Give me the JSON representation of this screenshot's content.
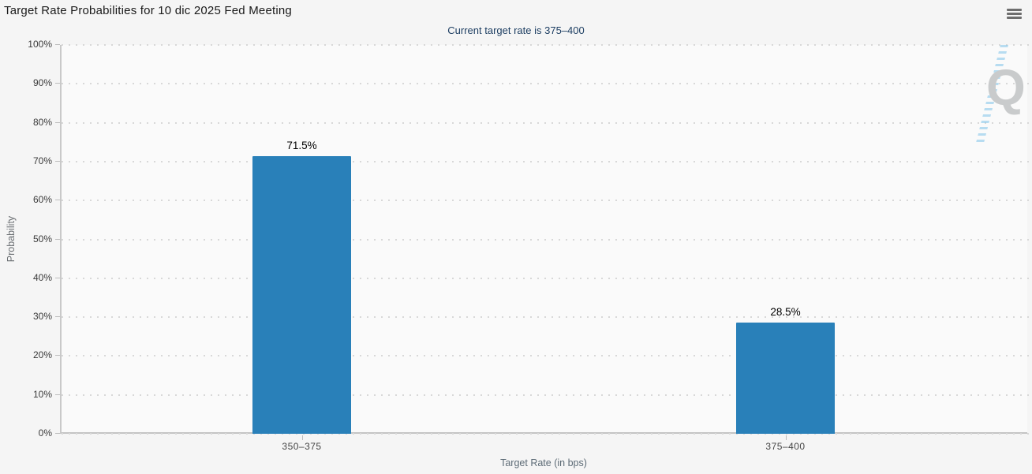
{
  "window": {
    "menu_button": {
      "icon": "hamburger-icon"
    }
  },
  "chart_data": {
    "type": "bar",
    "title": "Target Rate Probabilities for 10 dic 2025 Fed Meeting",
    "subtitle": "Current target rate is 375–400",
    "categories": [
      "350–375",
      "375–400"
    ],
    "values": [
      71.5,
      28.5
    ],
    "bar_labels": [
      "71.5%",
      "28.5%"
    ],
    "xlabel": "Target Rate (in bps)",
    "ylabel": "Probability",
    "ylim": [
      0,
      100
    ],
    "ytick_interval": 10,
    "ytick_labels": [
      "0%",
      "10%",
      "20%",
      "30%",
      "40%",
      "50%",
      "60%",
      "70%",
      "80%",
      "90%",
      "100%"
    ],
    "grid": "horizontal-dotted",
    "legend": "none",
    "bar_color": "#2980b9",
    "watermark_letter": "Q"
  },
  "colors": {
    "page_bg": "#f5f5f5",
    "plot_bg": "#fafafa",
    "title_text": "#1a1a1a",
    "subtitle_text": "#1e3f63",
    "axis_line": "#c9c9c9",
    "grid_dot": "#d8d8d8",
    "bar": "#2980b9",
    "axis_title_text": "#5d6b76",
    "tick_label_text": "#3a3a3a",
    "menu_icon": "#6e6e6e",
    "watermark_gray": "#c9cbcc",
    "watermark_blue": "#80c4e9"
  }
}
